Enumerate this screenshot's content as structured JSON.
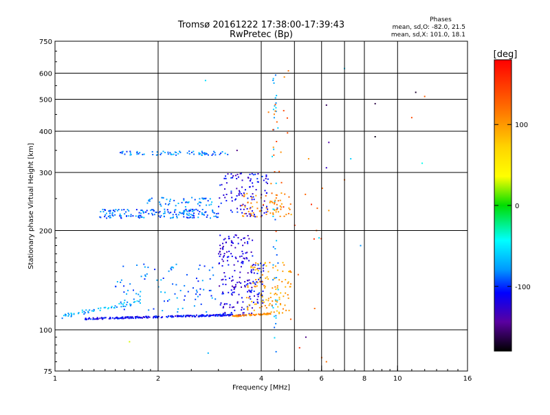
{
  "chart_data": {
    "type": "scatter",
    "title": "Tromsø 20161222 17:38:00-17:39:43",
    "subtitle": "RwPretec (Bp)",
    "xlabel": "Frequency [MHz]",
    "ylabel": "Stationary phase Virtual Height [km]",
    "x_scale": "log",
    "y_scale": "log",
    "xlim": [
      1,
      16
    ],
    "ylim": [
      75,
      750
    ],
    "x_ticks": [
      1,
      2,
      4,
      6,
      8,
      10,
      16
    ],
    "x_tick_labels": [
      "1",
      "2",
      "4",
      "6",
      "8",
      "10",
      "16"
    ],
    "x_grid_lines": [
      2,
      4,
      5,
      6,
      7,
      8,
      10
    ],
    "y_ticks": [
      75,
      100,
      200,
      300,
      400,
      500,
      600,
      750
    ],
    "y_tick_labels": [
      "75",
      "100",
      "200",
      "300",
      "400",
      "500",
      "600",
      "750"
    ],
    "y_grid_lines": [
      100,
      200,
      300,
      400,
      500,
      600
    ],
    "grid": true,
    "phases": {
      "title": "Phases",
      "line_o": "mean, sd,O: -82.0, 21.5",
      "line_x": "mean, sd,X: 101.0, 18.1"
    },
    "colorbar": {
      "label": "[deg]",
      "range": [
        -180,
        180
      ],
      "ticks": [
        100,
        0,
        -100
      ],
      "tick_labels": [
        "100",
        "0",
        "-100"
      ],
      "colormap": "rainbow"
    },
    "series": [
      {
        "segments": [
          {
            "x0": 1.22,
            "x1": 3.3,
            "y0": 108,
            "y1": 111,
            "phase": -110,
            "count": 260,
            "spread": 0.012
          },
          {
            "x0": 1.05,
            "x1": 1.8,
            "y0": 110,
            "y1": 122,
            "phase": -70,
            "count": 60,
            "spread": 0.03
          },
          {
            "x0": 1.5,
            "x1": 3.0,
            "y0": 113,
            "y1": 160,
            "phase": -85,
            "count": 90,
            "spread": 0.0
          },
          {
            "x0": 3.0,
            "x1": 3.8,
            "y0": 110,
            "y1": 195,
            "phase": -120,
            "count": 180,
            "spread": 0.0
          },
          {
            "x0": 3.7,
            "x1": 4.1,
            "y0": 120,
            "y1": 160,
            "phase": -110,
            "count": 40,
            "spread": 0.0
          },
          {
            "x0": 1.35,
            "x1": 3.0,
            "y0": 218,
            "y1": 232,
            "phase": -88,
            "count": 170,
            "spread": 0.0
          },
          {
            "x0": 1.8,
            "x1": 2.9,
            "y0": 236,
            "y1": 252,
            "phase": -80,
            "count": 50,
            "spread": 0.0
          },
          {
            "x0": 3.0,
            "x1": 4.2,
            "y0": 220,
            "y1": 300,
            "phase": -115,
            "count": 110,
            "spread": 0.0
          },
          {
            "x0": 1.55,
            "x1": 3.2,
            "y0": 338,
            "y1": 348,
            "phase": -82,
            "count": 70,
            "spread": 0.0
          },
          {
            "x0": 4.3,
            "x1": 4.5,
            "y0": 85,
            "y1": 620,
            "phase": -75,
            "count": 45,
            "spread": 0.0
          }
        ]
      },
      {
        "segments": [
          {
            "x0": 3.3,
            "x1": 4.3,
            "y0": 110,
            "y1": 112,
            "phase": 105,
            "count": 70,
            "spread": 0.01
          },
          {
            "x0": 3.6,
            "x1": 4.9,
            "y0": 112,
            "y1": 160,
            "phase": 95,
            "count": 110,
            "spread": 0.0
          },
          {
            "x0": 3.5,
            "x1": 4.9,
            "y0": 220,
            "y1": 260,
            "phase": 110,
            "count": 70,
            "spread": 0.0
          },
          {
            "x0": 4.2,
            "x1": 4.8,
            "y0": 260,
            "y1": 620,
            "phase": 125,
            "count": 18,
            "spread": 0.0
          },
          {
            "x0": 4.4,
            "x1": 6.2,
            "y0": 80,
            "y1": 300,
            "phase": 140,
            "count": 14,
            "spread": 0.0
          }
        ]
      },
      {
        "points": [
          [
            6.2,
            480,
            -160
          ],
          [
            8.6,
            485,
            -165
          ],
          [
            11.3,
            525,
            -170
          ],
          [
            8.6,
            385,
            -175
          ],
          [
            6.3,
            370,
            -140
          ],
          [
            7.3,
            330,
            -60
          ],
          [
            7.0,
            620,
            -60
          ],
          [
            11.8,
            320,
            -40
          ],
          [
            12.0,
            510,
            130
          ],
          [
            11.0,
            440,
            140
          ],
          [
            5.4,
            95,
            -150
          ],
          [
            7.8,
            180,
            -80
          ],
          [
            5.9,
            190,
            -55
          ],
          [
            2.8,
            85,
            -70
          ],
          [
            1.65,
            92,
            30
          ],
          [
            2.75,
            570,
            -55
          ],
          [
            3.4,
            350,
            -150
          ],
          [
            6.2,
            80,
            120
          ],
          [
            6.3,
            230,
            100
          ],
          [
            6.2,
            310,
            -130
          ],
          [
            7.0,
            285,
            125
          ],
          [
            4.8,
            610,
            120
          ],
          [
            5.5,
            330,
            105
          ],
          [
            5.8,
            200,
            130
          ]
        ]
      }
    ]
  }
}
